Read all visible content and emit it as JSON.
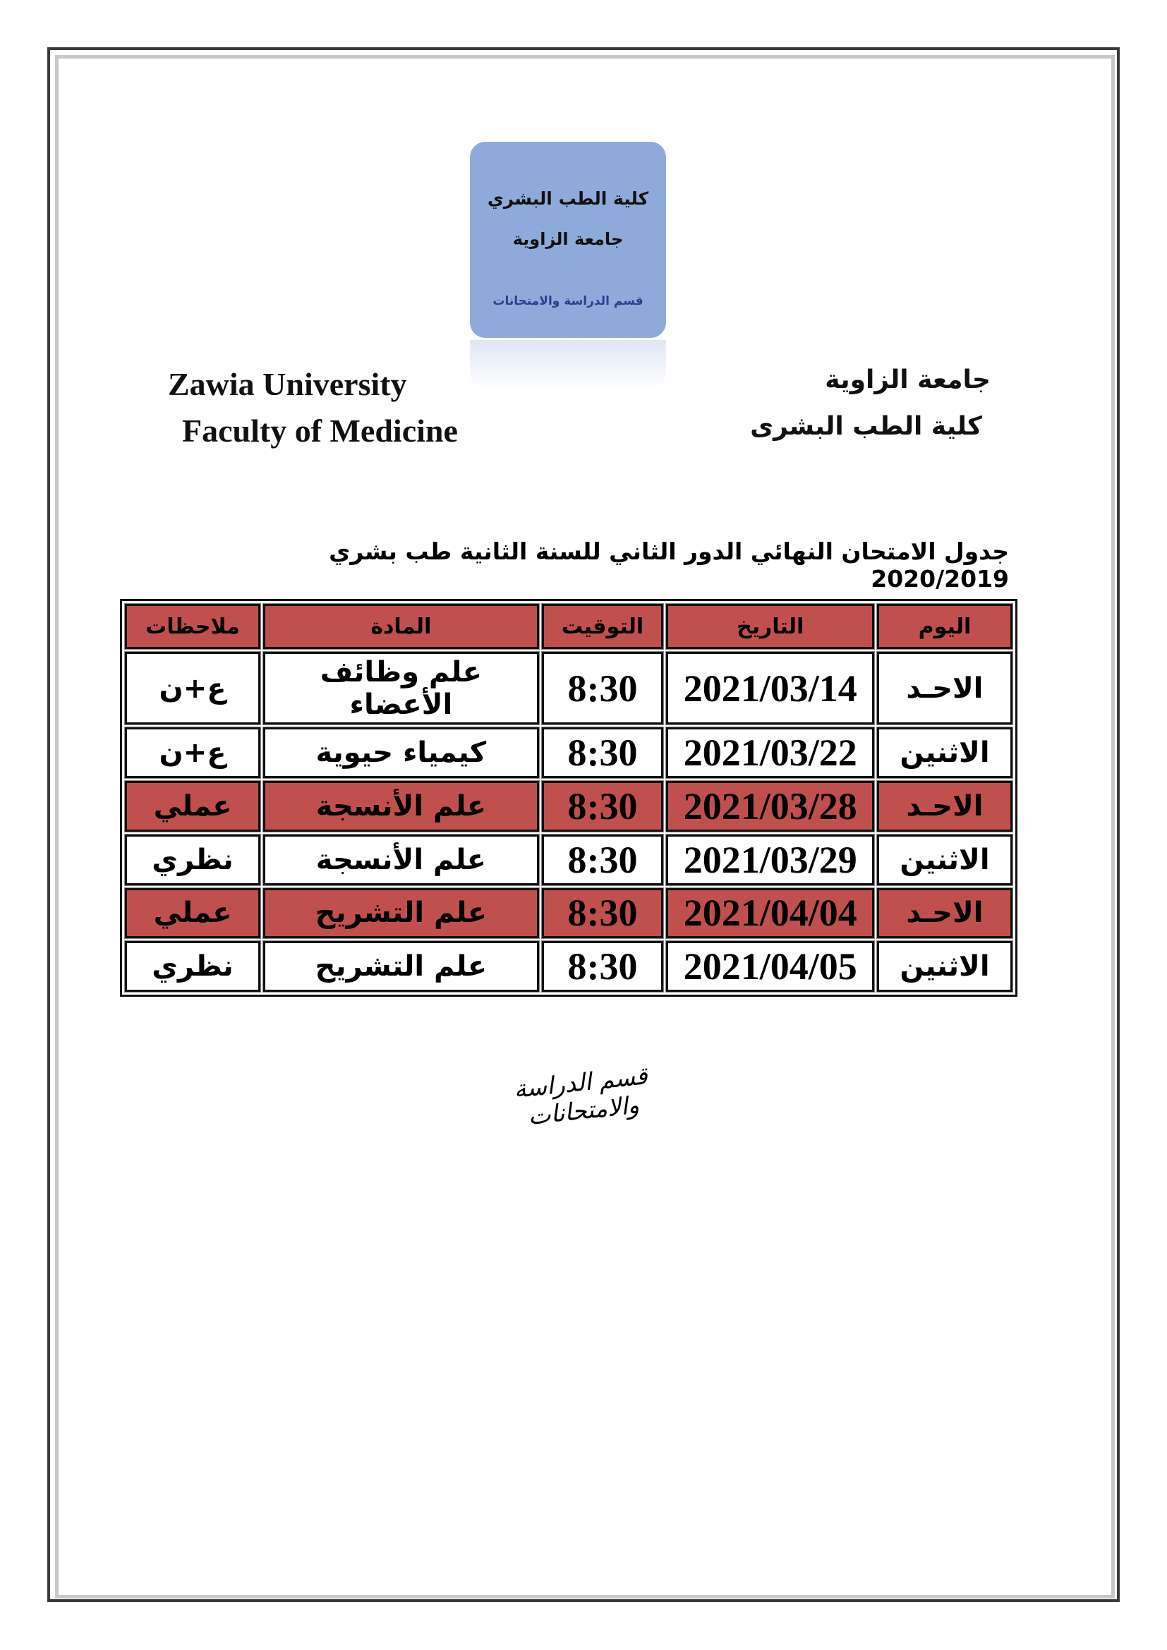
{
  "logo": {
    "line1": "كلية الطب البشري",
    "line2": "جامعة الزاوية",
    "line3": "قسم الدراسة والامتحانات"
  },
  "header": {
    "en_university": "Zawia University",
    "en_faculty": "Faculty of Medicine",
    "ar_university": "جامعة الزاوية",
    "ar_faculty": "كلية الطب البشرى"
  },
  "title": "جدول الامتحان النهائي  الدور الثاني  للسنة الثانية طب بشري  2020/2019",
  "table": {
    "headers": [
      "اليوم",
      "التاريخ",
      "التوقيت",
      "المادة",
      "ملاحظات"
    ],
    "highlight_color": "#c0504d",
    "rows": [
      {
        "day": "الاحـد",
        "date": "2021/03/14",
        "time": "8:30",
        "subject": "علم وظائف الأعضاء",
        "note": "ع+ن",
        "highlighted": false
      },
      {
        "day": "الاثنين",
        "date": "2021/03/22",
        "time": "8:30",
        "subject": "كيمياء حيوية",
        "note": "ع+ن",
        "highlighted": false
      },
      {
        "day": "الاحـد",
        "date": "2021/03/28",
        "time": "8:30",
        "subject": "علم الأنسجة",
        "note": "عملي",
        "highlighted": true
      },
      {
        "day": "الاثنين",
        "date": "2021/03/29",
        "time": "8:30",
        "subject": "علم الأنسجة",
        "note": "نظري",
        "highlighted": false
      },
      {
        "day": "الاحـد",
        "date": "2021/04/04",
        "time": "8:30",
        "subject": "علم التشريح",
        "note": "عملي",
        "highlighted": true
      },
      {
        "day": "الاثنين",
        "date": "2021/04/05",
        "time": "8:30",
        "subject": "علم التشريح",
        "note": "نظري",
        "highlighted": false
      }
    ]
  },
  "signature": "قسم الدراسة والامتحانات"
}
